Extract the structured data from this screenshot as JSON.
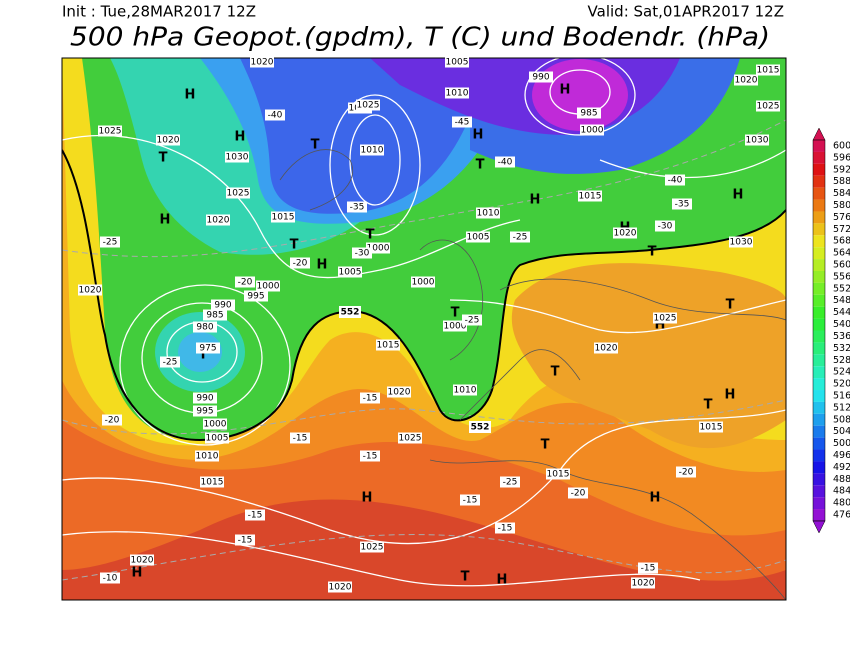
{
  "header": {
    "init": "Init : Tue,28MAR2017 12Z",
    "valid": "Valid: Sat,01APR2017 12Z",
    "title": "500 hPa Geopot.(gpdm), T (C) und Bodendr. (hPa)"
  },
  "colorbar": {
    "levels": [
      600,
      596,
      592,
      588,
      584,
      580,
      576,
      572,
      568,
      564,
      560,
      556,
      552,
      548,
      544,
      540,
      536,
      532,
      528,
      524,
      520,
      516,
      512,
      508,
      504,
      500,
      496,
      492,
      488,
      484,
      480,
      476
    ]
  },
  "map": {
    "contour_552": 552,
    "center_labels": [
      "H",
      "H",
      "H",
      "H",
      "H",
      "H",
      "H",
      "H",
      "H",
      "H",
      "H",
      "H",
      "H",
      "H",
      "H",
      "T",
      "T",
      "T",
      "T",
      "T",
      "T",
      "T",
      "T",
      "T",
      "T",
      "T",
      "T",
      "T"
    ],
    "isobar_labels": [
      1020,
      1005,
      990,
      1015,
      1020,
      1025,
      1010,
      985,
      1000,
      1030,
      1025,
      1020,
      1030,
      1025,
      1020,
      1015,
      1010,
      1005,
      1000,
      1005,
      1000,
      1000,
      995,
      990,
      985,
      980,
      975,
      990,
      995,
      1000,
      1005,
      1010,
      1015,
      1020,
      1025,
      1020,
      1020,
      1015,
      1015,
      1020,
      1015,
      1010,
      1025,
      1025,
      1020,
      1000,
      1020,
      1030,
      1020,
      1020,
      1025,
      1010,
      1015
    ],
    "temperature_labels": [
      -40,
      -35,
      -30,
      -25,
      -20,
      -25,
      -20,
      -20,
      -15,
      -15,
      -15,
      -15,
      -15,
      -15,
      -25,
      -20,
      -20,
      -15,
      -10,
      -40,
      -45,
      -40,
      -35,
      -30,
      -25,
      -25,
      -15
    ]
  }
}
